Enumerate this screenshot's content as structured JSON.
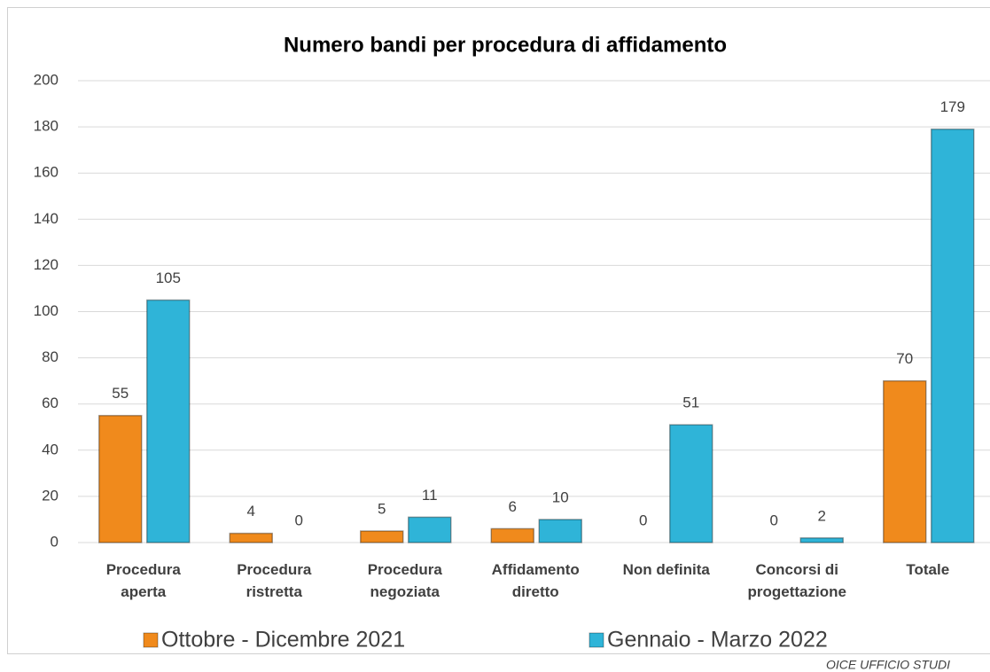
{
  "chart_data": {
    "type": "bar",
    "title": "Numero bandi per procedura di affidamento",
    "categories": [
      "Procedura aperta",
      "Procedura ristretta",
      "Procedura negoziata",
      "Affidamento diretto",
      "Non definita",
      "Concorsi di progettazione",
      "Totale"
    ],
    "series": [
      {
        "name": "Ottobre - Dicembre 2021",
        "color": "#f08a1c",
        "values": [
          55,
          4,
          5,
          6,
          0,
          0,
          70
        ]
      },
      {
        "name": "Gennaio - Marzo 2022",
        "color": "#2fb4d8",
        "values": [
          105,
          0,
          11,
          10,
          51,
          2,
          179
        ]
      }
    ],
    "ylim": [
      0,
      200
    ],
    "yticks": [
      0,
      20,
      40,
      60,
      80,
      100,
      120,
      140,
      160,
      180,
      200
    ],
    "grid": true,
    "legend": "bottom",
    "source": "OICE UFFICIO STUDI"
  }
}
